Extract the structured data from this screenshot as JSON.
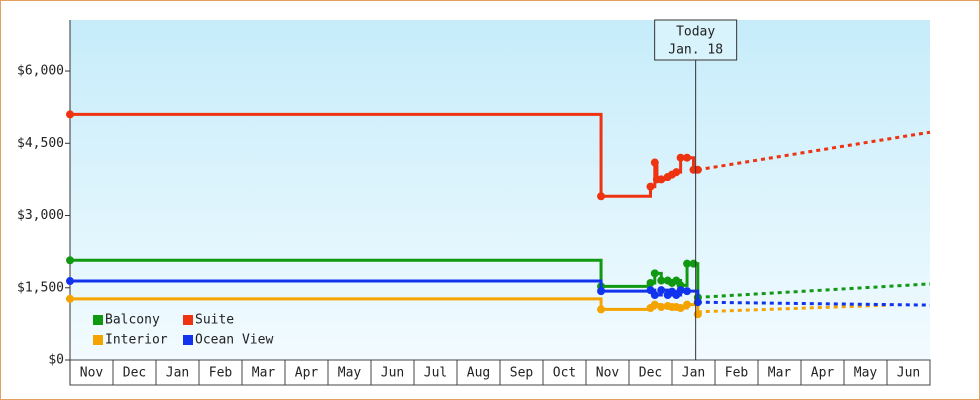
{
  "chart_data": {
    "type": "step-line",
    "xlim": [
      0,
      20
    ],
    "ylim": [
      0,
      7060
    ],
    "xticks": [
      {
        "value": 0.5,
        "label": "Nov"
      },
      {
        "value": 1.5,
        "label": "Dec"
      },
      {
        "value": 2.5,
        "label": "Jan"
      },
      {
        "value": 3.5,
        "label": "Feb"
      },
      {
        "value": 4.5,
        "label": "Mar"
      },
      {
        "value": 5.5,
        "label": "Apr"
      },
      {
        "value": 6.5,
        "label": "May"
      },
      {
        "value": 7.5,
        "label": "Jun"
      },
      {
        "value": 8.5,
        "label": "Jul"
      },
      {
        "value": 9.5,
        "label": "Aug"
      },
      {
        "value": 10.5,
        "label": "Sep"
      },
      {
        "value": 11.5,
        "label": "Oct"
      },
      {
        "value": 12.5,
        "label": "Nov"
      },
      {
        "value": 13.5,
        "label": "Dec"
      },
      {
        "value": 14.5,
        "label": "Jan"
      },
      {
        "value": 15.5,
        "label": "Feb"
      },
      {
        "value": 16.5,
        "label": "Mar"
      },
      {
        "value": 17.5,
        "label": "Apr"
      },
      {
        "value": 18.5,
        "label": "May"
      },
      {
        "value": 19.5,
        "label": "Jun"
      }
    ],
    "yticks": [
      {
        "value": 0,
        "label": "$0"
      },
      {
        "value": 1500,
        "label": "$1,500"
      },
      {
        "value": 3000,
        "label": "$3,000"
      },
      {
        "value": 4500,
        "label": "$4,500"
      },
      {
        "value": 6000,
        "label": "$6,000"
      }
    ],
    "legend": "lower left",
    "annotation": {
      "x": 14.55,
      "lines": [
        "Today",
        "Jan. 18"
      ]
    },
    "series": [
      {
        "name": "Balcony",
        "color": "#119911",
        "x": [
          0,
          12.35,
          13.5,
          13.6,
          13.75,
          13.9,
          14.0,
          14.1,
          14.2,
          14.35,
          14.5,
          14.6
        ],
        "values": [
          2070,
          1530,
          1600,
          1800,
          1650,
          1650,
          1600,
          1650,
          1550,
          2000,
          2000,
          1300
        ],
        "projection": {
          "x": [
            14.6,
            20
          ],
          "values": [
            1300,
            1580
          ]
        }
      },
      {
        "name": "Suite",
        "color": "#ee3311",
        "x": [
          0,
          12.35,
          13.5,
          13.6,
          13.65,
          13.75,
          13.9,
          14.0,
          14.1,
          14.2,
          14.35,
          14.5,
          14.6
        ],
        "values": [
          5100,
          3400,
          3600,
          4100,
          3750,
          3750,
          3800,
          3850,
          3900,
          4200,
          4200,
          3950,
          3950
        ],
        "projection": {
          "x": [
            14.6,
            20
          ],
          "values": [
            3950,
            4730
          ]
        }
      },
      {
        "name": "Interior",
        "color": "#f5a300",
        "x": [
          0,
          12.35,
          13.5,
          13.6,
          13.75,
          13.9,
          14.0,
          14.1,
          14.2,
          14.35,
          14.6
        ],
        "values": [
          1270,
          1050,
          1080,
          1150,
          1100,
          1120,
          1100,
          1100,
          1080,
          1150,
          950
        ],
        "projection": {
          "x": [
            14.6,
            19.07
          ],
          "values": [
            1000,
            1140
          ]
        }
      },
      {
        "name": "Ocean View",
        "color": "#1133ee",
        "x": [
          0,
          12.35,
          13.5,
          13.6,
          13.75,
          13.9,
          14.0,
          14.1,
          14.2,
          14.35,
          14.6
        ],
        "values": [
          1640,
          1430,
          1450,
          1350,
          1450,
          1350,
          1420,
          1350,
          1450,
          1430,
          1200
        ],
        "projection": {
          "x": [
            14.6,
            20
          ],
          "values": [
            1200,
            1140
          ]
        }
      }
    ]
  }
}
